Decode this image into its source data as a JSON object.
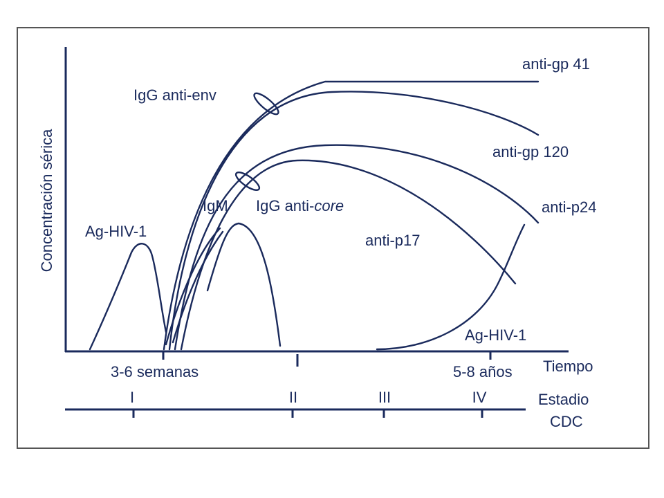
{
  "y_axis_label": "Concentración sérica",
  "curve_labels": {
    "anti_gp41": "anti-gp 41",
    "igg_anti_env": "IgG anti-env",
    "anti_gp120": "anti-gp 120",
    "igm": "IgM",
    "igg_anti_core": {
      "prefix": "IgG anti-",
      "italic": "core"
    },
    "anti_p24": "anti-p24",
    "ag_hiv_early": "Ag-HIV-1",
    "anti_p17": "anti-p17",
    "ag_hiv_late": "Ag-HIV-1"
  },
  "time_axis": {
    "label": "Tiempo",
    "start": "3-6 semanas",
    "end": "5-8 años"
  },
  "stage_axis": {
    "label_line1": "Estadio",
    "label_line2": "CDC",
    "stages": [
      "I",
      "II",
      "III",
      "IV"
    ]
  }
}
